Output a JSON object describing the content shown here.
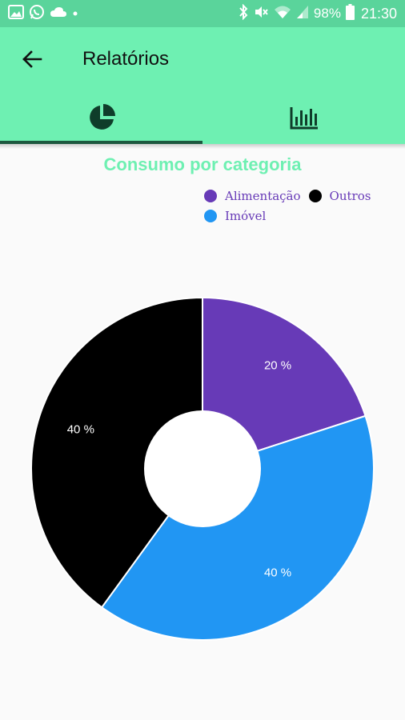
{
  "status_bar": {
    "battery_percent": "98%",
    "time": "21:30",
    "icons_left": [
      "image-icon",
      "whatsapp-icon",
      "cloud-app-icon",
      "dot-icon"
    ],
    "icons_right": [
      "bluetooth-icon",
      "mute-icon",
      "wifi-icon",
      "signal-icon",
      "battery-icon"
    ]
  },
  "app_bar": {
    "title": "Relatórios",
    "back_icon": "arrow-back-icon",
    "tabs": [
      {
        "icon": "pie-chart-icon",
        "selected": true
      },
      {
        "icon": "bar-chart-icon",
        "selected": false
      }
    ]
  },
  "colors": {
    "status_bar": "#5ad49b",
    "app_bar": "#6ef0b2",
    "accent": "#6ef0b2",
    "legend_text": "#673ab7"
  },
  "chart": {
    "title": "Consumo por categoria",
    "legend": [
      {
        "label": "Alimentação",
        "color": "#673ab7"
      },
      {
        "label": "Outros",
        "color": "#000000"
      },
      {
        "label": "Imóvel",
        "color": "#2196f3"
      }
    ]
  },
  "chart_data": {
    "type": "pie",
    "title": "Consumo por categoria",
    "legend_position": "top-right",
    "donut": true,
    "slices": [
      {
        "name": "Alimentação",
        "value": 20,
        "label": "20 %",
        "color": "#673ab7"
      },
      {
        "name": "Imóvel",
        "value": 40,
        "label": "40 %",
        "color": "#2196f3"
      },
      {
        "name": "Outros",
        "value": 40,
        "label": "40 %",
        "color": "#000000"
      }
    ]
  }
}
